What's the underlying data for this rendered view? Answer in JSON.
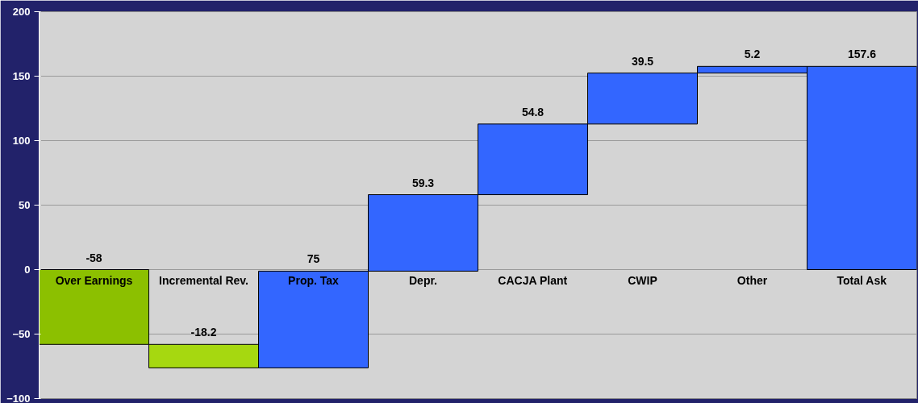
{
  "chart_data": {
    "type": "bar",
    "categories": [
      "Over Earnings",
      "Incremental Rev.",
      "Prop. Tax",
      "Depr.",
      "CACJA Plant",
      "CWIP",
      "Other",
      "Total Ask"
    ],
    "values": [
      -58,
      -18.2,
      75,
      59.3,
      54.8,
      39.5,
      5.2,
      157.6
    ],
    "base": [
      0,
      -58,
      -76.2,
      -1.2,
      58.1,
      112.9,
      152.4,
      0
    ],
    "colors": [
      "#8cc000",
      "#a6d810",
      "#3366ff",
      "#3366ff",
      "#3366ff",
      "#3366ff",
      "#3366ff",
      "#3366ff"
    ],
    "ylim": [
      -100,
      200
    ],
    "yticks": [
      -100,
      -50,
      0,
      50,
      100,
      150,
      200
    ],
    "grid": "y",
    "data_labels": true
  }
}
